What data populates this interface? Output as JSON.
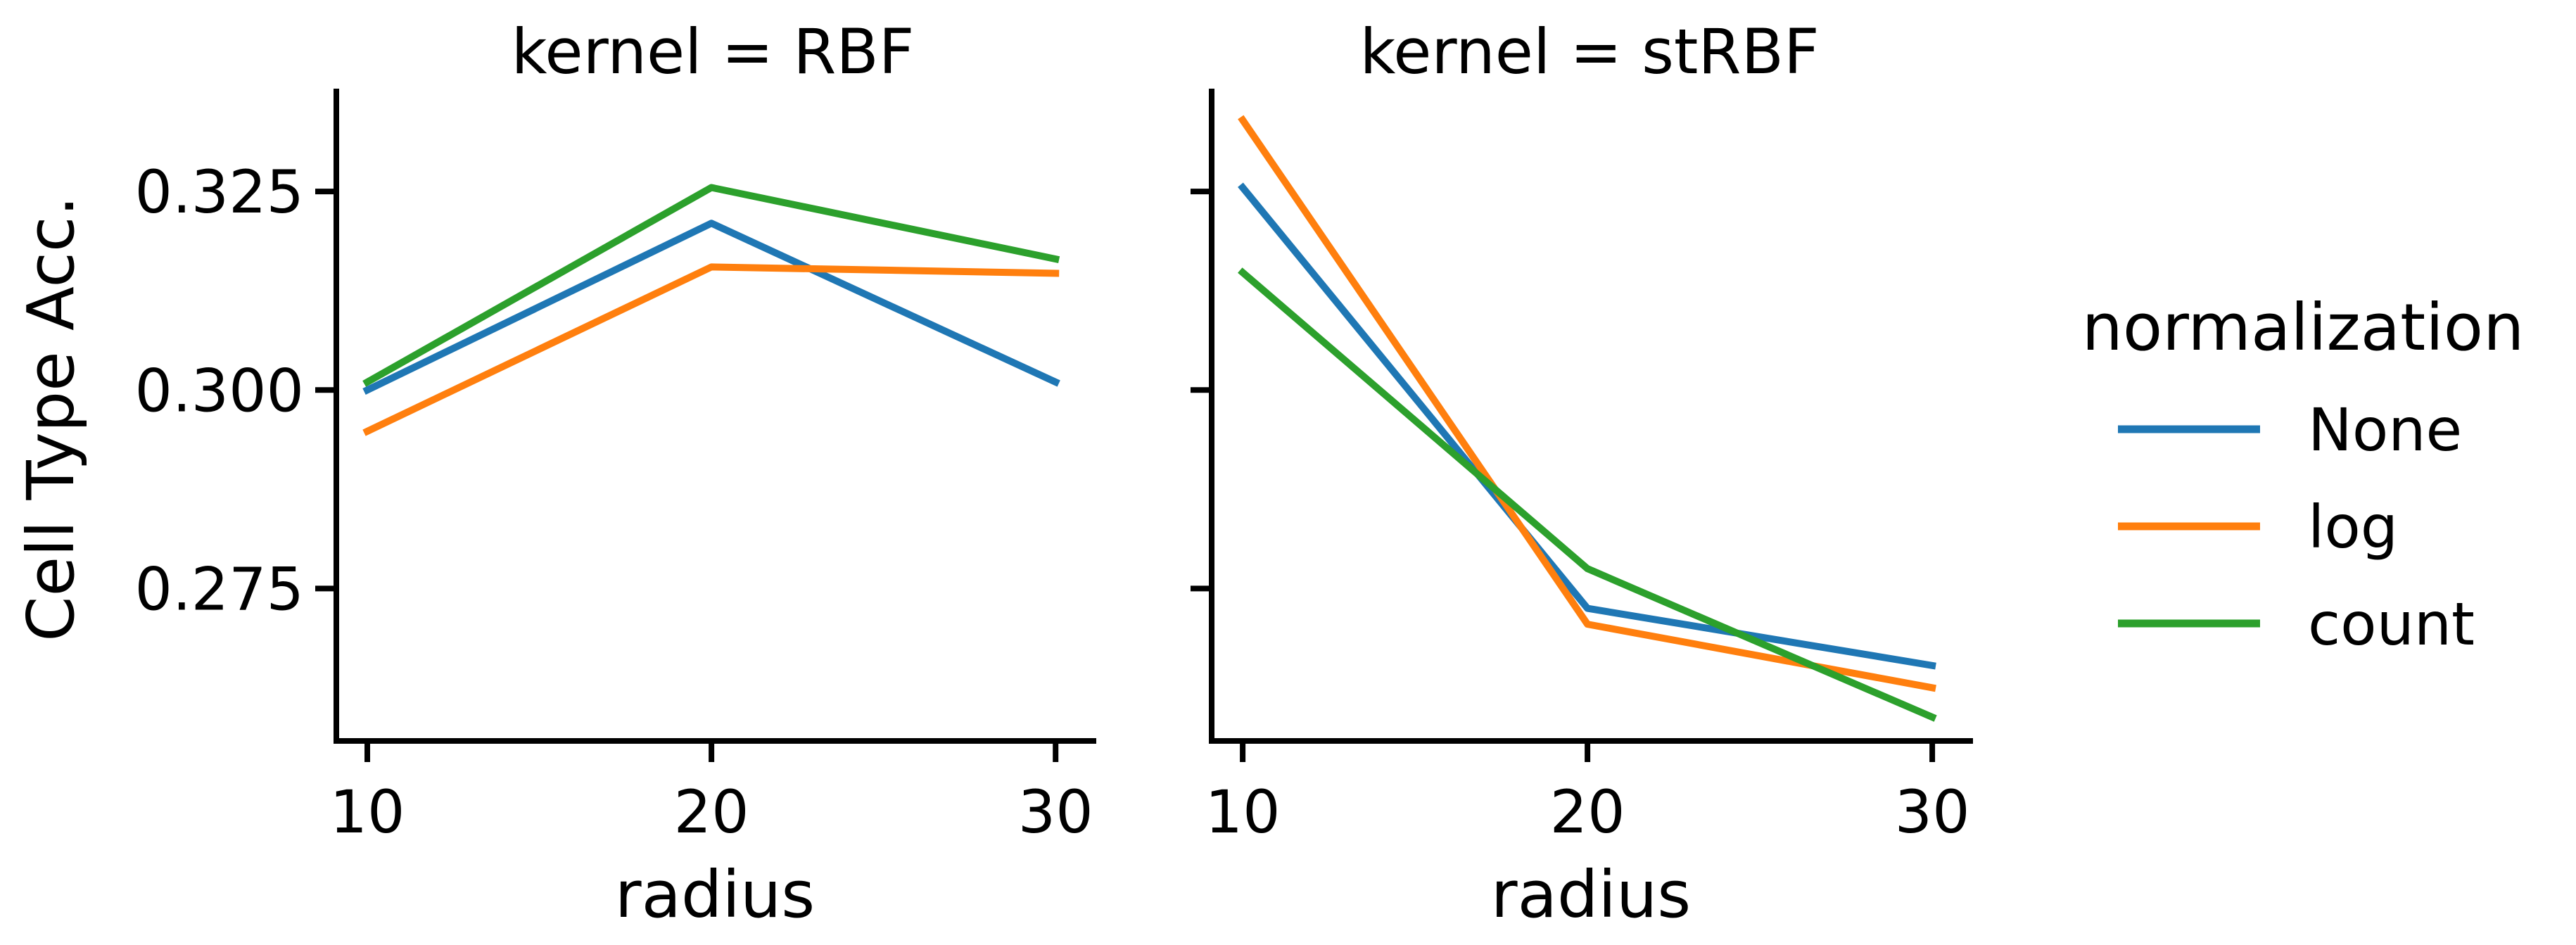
{
  "chart_data": {
    "type": "line",
    "x": [
      10,
      20,
      30
    ],
    "xlabel": "radius",
    "ylabel": "Cell Type Acc.",
    "xlim": [
      9.1,
      31.1
    ],
    "ylim": [
      0.2558,
      0.3376
    ],
    "xticks": [
      10,
      20,
      30
    ],
    "yticks": [
      0.275,
      0.3,
      0.325
    ],
    "ytick_labels": [
      "0.275",
      "0.300",
      "0.325"
    ],
    "grid": false,
    "legend": {
      "title": "normalization",
      "placement": "right",
      "entries": [
        "None",
        "log",
        "count"
      ]
    },
    "panels": [
      {
        "title": "kernel = RBF",
        "series": [
          {
            "name": "None",
            "color": "#1f77b4",
            "values": [
              0.3,
              0.321,
              0.301
            ]
          },
          {
            "name": "log",
            "color": "#ff7f0e",
            "values": [
              0.2948,
              0.3155,
              0.3147
            ]
          },
          {
            "name": "count",
            "color": "#2ca02c",
            "values": [
              0.301,
              0.3255,
              0.3165
            ]
          }
        ]
      },
      {
        "title": "kernel = stRBF",
        "series": [
          {
            "name": "None",
            "color": "#1f77b4",
            "values": [
              0.3255,
              0.2725,
              0.2653
            ]
          },
          {
            "name": "log",
            "color": "#ff7f0e",
            "values": [
              0.334,
              0.2705,
              0.2625
            ]
          },
          {
            "name": "count",
            "color": "#2ca02c",
            "values": [
              0.3148,
              0.2775,
              0.2588
            ]
          }
        ]
      }
    ]
  }
}
